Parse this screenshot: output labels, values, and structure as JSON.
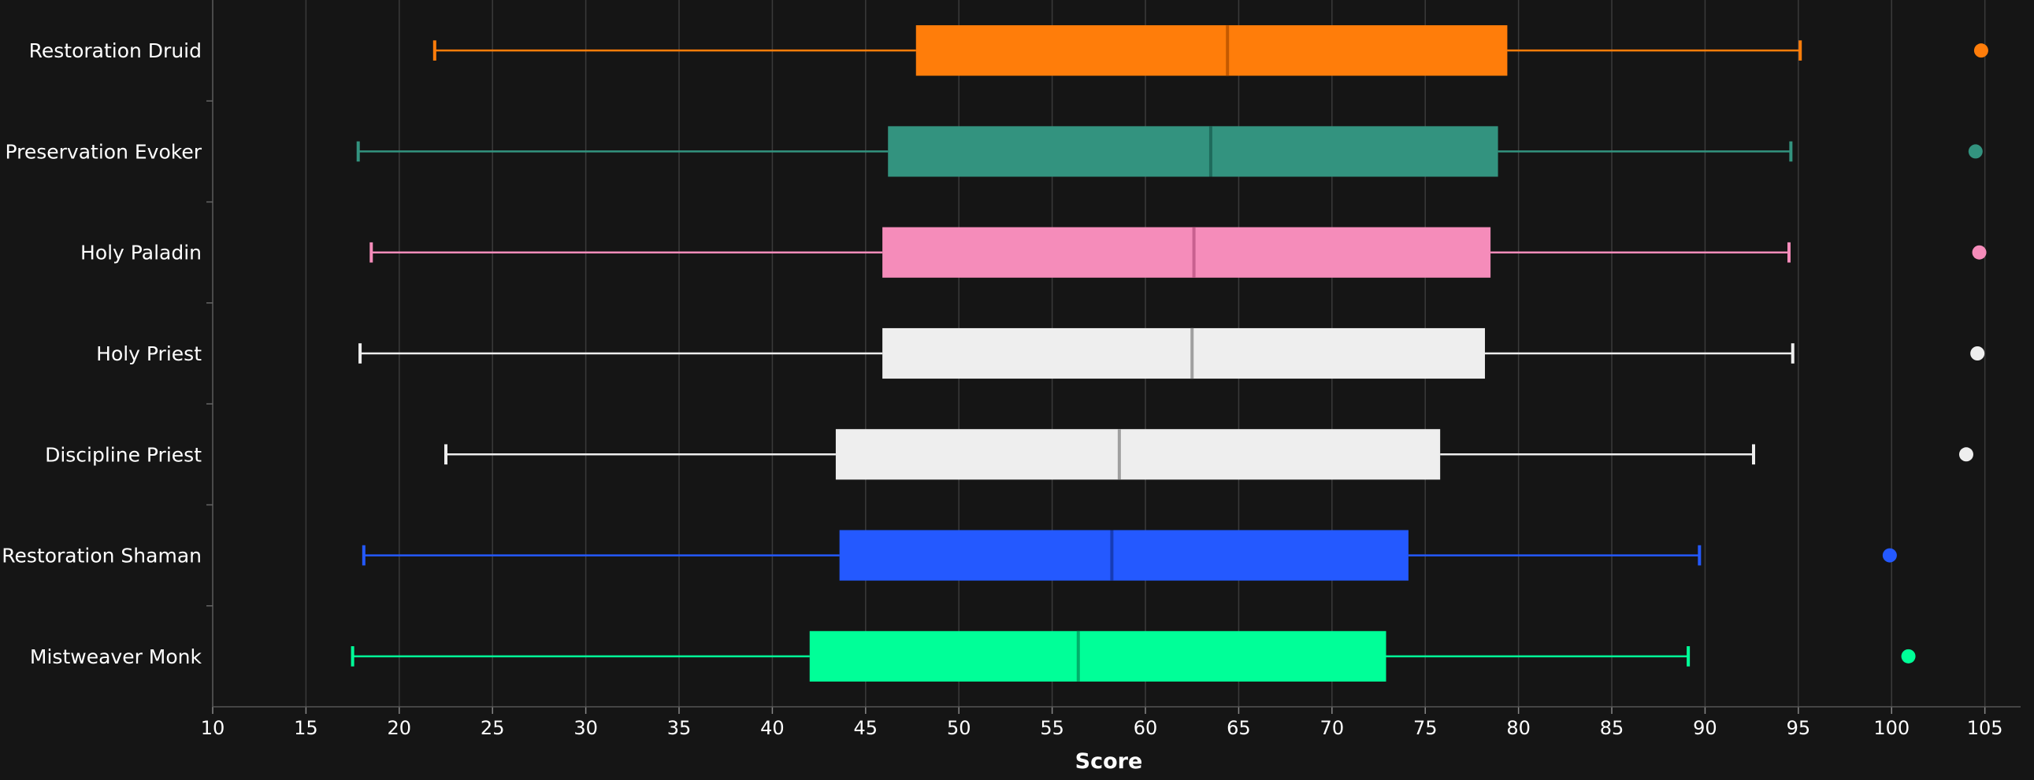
{
  "chart_data": {
    "type": "box",
    "title": "",
    "xlabel": "Score",
    "ylabel": "",
    "xlim": [
      10,
      106
    ],
    "x_ticks": [
      10,
      15,
      20,
      25,
      30,
      35,
      40,
      45,
      50,
      55,
      60,
      65,
      70,
      75,
      80,
      85,
      90,
      95,
      100,
      105
    ],
    "grid": "vertical",
    "background": "#151515",
    "series": [
      {
        "name": "Restoration Druid",
        "color": "#ff7d0a",
        "median_color": "#c45a00",
        "min": 21.9,
        "q1": 47.7,
        "median": 64.4,
        "q3": 79.4,
        "max": 95.1,
        "outliers": [
          104.8
        ]
      },
      {
        "name": "Preservation Evoker",
        "color": "#33937f",
        "median_color": "#1f6b5c",
        "min": 17.8,
        "q1": 46.2,
        "median": 63.5,
        "q3": 78.9,
        "max": 94.6,
        "outliers": [
          104.5
        ]
      },
      {
        "name": "Holy Paladin",
        "color": "#f58cba",
        "median_color": "#c7608f",
        "min": 18.5,
        "q1": 45.9,
        "median": 62.6,
        "q3": 78.5,
        "max": 94.5,
        "outliers": [
          104.7
        ]
      },
      {
        "name": "Holy Priest",
        "color": "#eeeeee",
        "median_color": "#a0a0a0",
        "min": 17.9,
        "q1": 45.9,
        "median": 62.5,
        "q3": 78.2,
        "max": 94.7,
        "outliers": [
          104.6
        ]
      },
      {
        "name": "Discipline Priest",
        "color": "#eeeeee",
        "median_color": "#a0a0a0",
        "min": 22.5,
        "q1": 43.4,
        "median": 58.6,
        "q3": 75.8,
        "max": 92.6,
        "outliers": [
          104.0
        ]
      },
      {
        "name": "Restoration Shaman",
        "color": "#2459ff",
        "median_color": "#163cb5",
        "min": 18.1,
        "q1": 43.6,
        "median": 58.2,
        "q3": 74.1,
        "max": 89.7,
        "outliers": [
          99.9
        ]
      },
      {
        "name": "Mistweaver Monk",
        "color": "#00ff98",
        "median_color": "#00b06a",
        "min": 17.5,
        "q1": 42.0,
        "median": 56.4,
        "q3": 72.9,
        "max": 89.1,
        "outliers": [
          100.9
        ]
      }
    ]
  }
}
